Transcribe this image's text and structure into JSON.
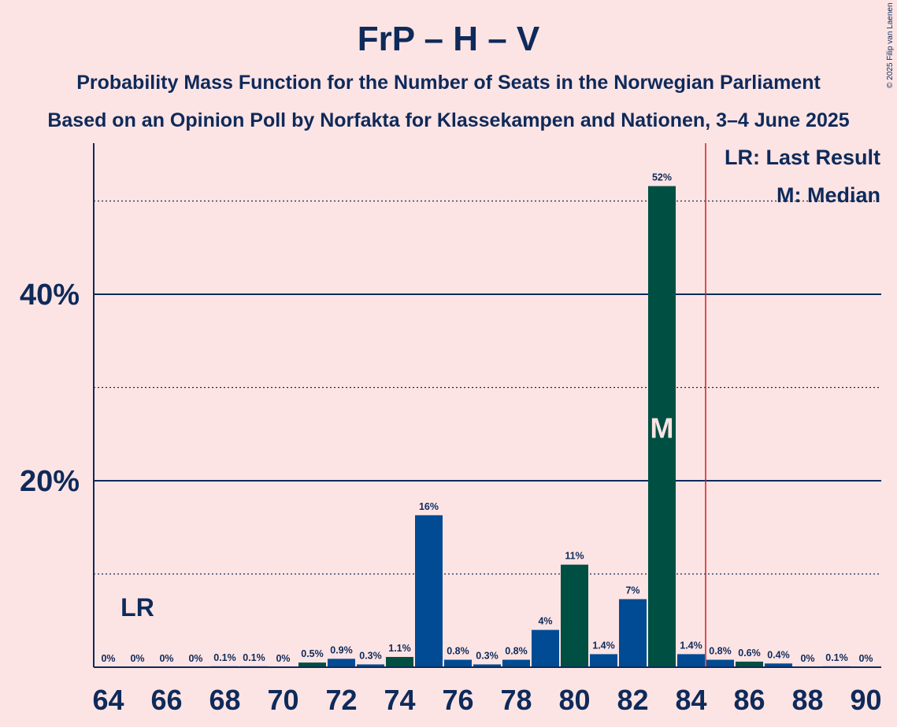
{
  "chart_data": {
    "type": "bar",
    "title": "FrP – H – V",
    "subtitle": "Probability Mass Function for the Number of Seats in the Norwegian Parliament",
    "subtitle2": "Based on an Opinion Poll by Norfakta for Klassekampen and Nationen, 3–4 June 2025",
    "copyright": "© 2025 Filip van Laenen",
    "legend": {
      "lr": "LR: Last Result",
      "median": "M: Median"
    },
    "lr_marker": "LR",
    "median_marker": "M",
    "x": [
      64,
      65,
      66,
      67,
      68,
      69,
      70,
      71,
      72,
      73,
      74,
      75,
      76,
      77,
      78,
      79,
      80,
      81,
      82,
      83,
      84,
      85,
      86,
      87,
      88,
      89,
      90
    ],
    "values": [
      0,
      0,
      0,
      0,
      0.1,
      0.1,
      0,
      0.5,
      0.9,
      0.3,
      1.1,
      16.3,
      0.8,
      0.3,
      0.8,
      4.0,
      11.0,
      1.4,
      7.3,
      51.6,
      1.4,
      0.8,
      0.6,
      0.4,
      0,
      0.1,
      0
    ],
    "labels": [
      "0%",
      "0%",
      "0%",
      "0%",
      "0.1%",
      "0.1%",
      "0%",
      "0.5%",
      "0.9%",
      "0.3%",
      "1.1%",
      "16%",
      "0.8%",
      "0.3%",
      "0.8%",
      "4%",
      "11%",
      "1.4%",
      "7%",
      "52%",
      "1.4%",
      "0.8%",
      "0.6%",
      "0.4%",
      "0%",
      "0.1%",
      "0%"
    ],
    "highlight_seats": [
      71,
      74,
      80,
      83,
      86
    ],
    "x_ticks": [
      "64",
      "66",
      "68",
      "70",
      "72",
      "74",
      "76",
      "78",
      "80",
      "82",
      "84",
      "86",
      "88",
      "90"
    ],
    "y_ticks": [
      "20%",
      "40%"
    ],
    "ylim": [
      0,
      56
    ],
    "last_result": 65,
    "median": 83,
    "majority_line": 84.5,
    "colors": {
      "background": "#fde4e4",
      "bar_primary": "#004b93",
      "bar_highlight": "#004f43",
      "text": "#0e2a5a",
      "majority_line": "#cc1f1f"
    }
  }
}
